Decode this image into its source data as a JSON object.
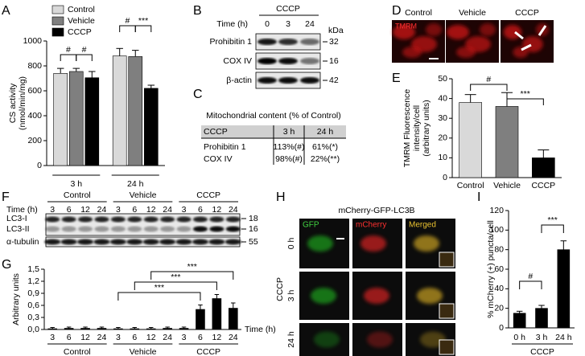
{
  "panel_labels": [
    "A",
    "B",
    "C",
    "D",
    "E",
    "F",
    "G",
    "H",
    "I"
  ],
  "chart_data": [
    {
      "type": "bar",
      "y_label": [
        "CS activity",
        "(nmol/min/mg)"
      ],
      "categories": [
        "3 h",
        "24 h"
      ],
      "series": [
        {
          "name": "Control",
          "color": "#d9d9d9",
          "values": [
            740,
            880
          ],
          "errors": [
            40,
            60
          ]
        },
        {
          "name": "Vehicle",
          "color": "#7f7f7f",
          "values": [
            755,
            875
          ],
          "errors": [
            25,
            50
          ]
        },
        {
          "name": "CCCP",
          "color": "#000000",
          "values": [
            705,
            620
          ],
          "errors": [
            50,
            25
          ]
        }
      ],
      "ylim": [
        0,
        1000
      ],
      "yticks": [
        0,
        200,
        400,
        600,
        800,
        1000
      ],
      "legend": "upper left",
      "annotations": [
        "#",
        "#",
        "#",
        "***"
      ]
    },
    {
      "type": "bar",
      "y_label": [
        "TMRM Fluorescence",
        "intensity/cell",
        "(arbitrary units)"
      ],
      "categories": [
        "Control",
        "Vehicle",
        "CCCP"
      ],
      "values": [
        38,
        36,
        10
      ],
      "errors": [
        4,
        7,
        4
      ],
      "colors": [
        "#d9d9d9",
        "#7f7f7f",
        "#000000"
      ],
      "ylim": [
        0,
        50
      ],
      "yticks": [
        0,
        10,
        20,
        30,
        40,
        50
      ],
      "annotations": [
        "#",
        "***"
      ]
    },
    {
      "type": "bar",
      "y_label": [
        "Arbitrary units"
      ],
      "x_label": "Time (h)",
      "categories": [
        "3",
        "6",
        "12",
        "24",
        "3",
        "6",
        "12",
        "24",
        "3",
        "6",
        "12",
        "24"
      ],
      "groups": [
        "Control",
        "Vehicle",
        "CCCP"
      ],
      "values": [
        0.02,
        0.03,
        0.03,
        0.03,
        0.02,
        0.02,
        0.02,
        0.03,
        0.03,
        0.5,
        0.77,
        0.53
      ],
      "errors": [
        0.03,
        0.03,
        0.03,
        0.03,
        0.03,
        0.03,
        0.03,
        0.03,
        0.03,
        0.11,
        0.1,
        0.13
      ],
      "color": "#000000",
      "ylim": [
        0,
        1.5
      ],
      "yticks": [
        {
          "value": 0,
          "label": "0,0"
        },
        {
          "value": 0.3,
          "label": "0,3"
        },
        {
          "value": 0.6,
          "label": "0,6"
        },
        {
          "value": 0.9,
          "label": "0,9"
        },
        {
          "value": 1.2,
          "label": "1,2"
        },
        {
          "value": 1.5,
          "label": "1,5"
        }
      ],
      "annotations": [
        "***",
        "***",
        "***"
      ]
    },
    {
      "type": "bar",
      "y_label": [
        "% mCherry (+) puncta/cell"
      ],
      "categories": [
        "0 h",
        "3 h",
        "24 h"
      ],
      "group_label": "CCCP",
      "values": [
        15,
        20,
        80
      ],
      "errors": [
        2,
        3,
        9
      ],
      "color": "#000000",
      "ylim": [
        0,
        120
      ],
      "yticks": [
        0,
        20,
        40,
        60,
        80,
        100,
        120
      ],
      "annotations": [
        "#",
        "***"
      ]
    }
  ],
  "blot_b": {
    "title": "CCCP",
    "time_label": "Time (h)",
    "lanes": [
      "0",
      "3",
      "24"
    ],
    "unit": "kDa",
    "rows": [
      {
        "label": "Prohibitin 1",
        "kda": "32"
      },
      {
        "label": "COX IV",
        "kda": "16"
      },
      {
        "label": "β-actin",
        "kda": "42"
      }
    ]
  },
  "table_c": {
    "title": "Mitochondrial content (% of Control)",
    "header": [
      "CCCP",
      "3 h",
      "24 h"
    ],
    "rows": [
      [
        "Prohibitin 1",
        "113%(#)",
        "61%(*)"
      ],
      [
        "COX IV",
        "98%(#)",
        "22%(**)"
      ]
    ]
  },
  "images_d": {
    "columns": [
      "Control",
      "Vehicle",
      "CCCP"
    ],
    "stain": "TMRM"
  },
  "blot_f": {
    "time_label": "Time (h)",
    "groups": [
      "Control",
      "Vehicle",
      "CCCP"
    ],
    "lanes": [
      "3",
      "6",
      "12",
      "24"
    ],
    "rows": [
      {
        "label": "LC3-I",
        "kda": "18"
      },
      {
        "label": "LC3-II",
        "kda": "16"
      },
      {
        "label": "α-tubulin",
        "kda": "55"
      }
    ]
  },
  "images_h": {
    "title": "mCherry-GFP-LC3B",
    "columns": [
      "GFP",
      "mCherry",
      "Merged"
    ],
    "rows": [
      "0 h",
      "3 h",
      "24 h"
    ],
    "condition": "CCCP"
  }
}
